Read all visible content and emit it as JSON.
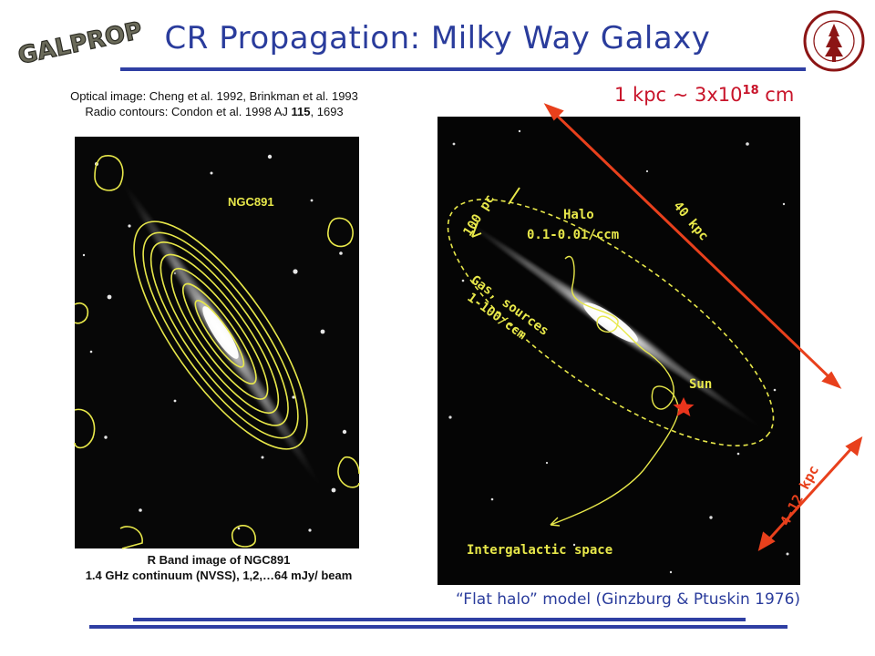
{
  "header": {
    "title": "CR Propagation: Milky Way Galaxy",
    "logo_left_text": "GALPROP",
    "logo_right_text": "LELAND STANFORD JUNIOR UNIVERSITY"
  },
  "credits": {
    "line1": "Optical image: Cheng et al. 1992, Brinkman et al. 1993",
    "line2_prefix": "Radio contours: Condon et al. 1998 AJ ",
    "line2_volume": "115",
    "line2_suffix": ", 1693"
  },
  "scale_note": {
    "prefix": "1 kpc ~ 3x10",
    "exponent": "18",
    "suffix": " cm"
  },
  "left_panel": {
    "galaxy_label": "NGC891",
    "caption_line1": "R Band image of NGC891",
    "caption_line2": "1.4 GHz continuum (NVSS), 1,2,…64 mJy/ beam"
  },
  "right_panel": {
    "halo_label": "Halo",
    "halo_density": "0.1-0.01/ccm",
    "gas_label": "Gas, sources",
    "gas_density": "1-100/ccm",
    "thickness_label": "100 pc",
    "sun_label": "Sun",
    "intergalactic_label": "Intergalactic space",
    "diameter_label": "40 kpc",
    "height_label": "4-12 kpc"
  },
  "footer": {
    "model_text": "“Flat halo” model (Ginzburg & Ptuskin 1976)"
  },
  "colors": {
    "title": "#2a3c9c",
    "rule": "#2f3fa3",
    "accent_red": "#c8142a",
    "arrow_red": "#e8401c",
    "contour_yellow": "#e8e84a"
  }
}
